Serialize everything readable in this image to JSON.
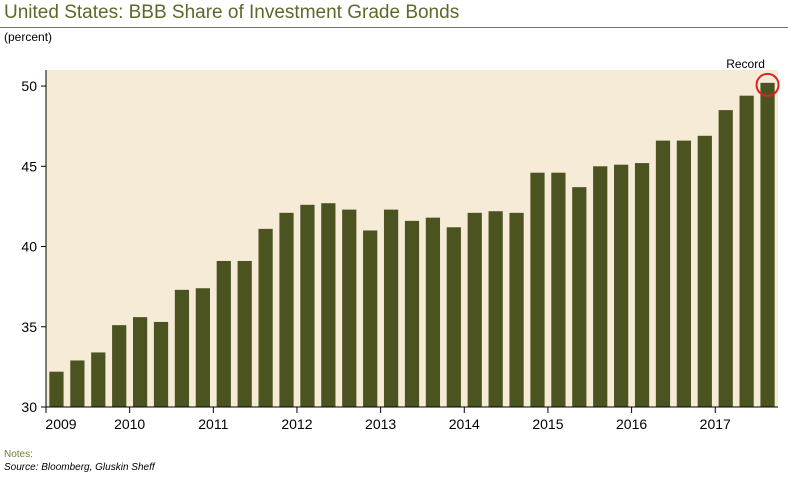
{
  "header": {
    "title": "United States: BBB Share of Investment Grade Bonds",
    "unit": "(percent)"
  },
  "footer": {
    "notes": "Notes:",
    "source": "Source: Bloomberg, Gluskin Sheff"
  },
  "chart_data": {
    "type": "bar",
    "title": "United States: BBB Share of Investment Grade Bonds",
    "ylabel": "(percent)",
    "xlabel": "",
    "ylim": [
      30,
      51
    ],
    "yticks": [
      30,
      35,
      40,
      45,
      50
    ],
    "x_tick_labels": [
      "2009",
      "2010",
      "2011",
      "2012",
      "2013",
      "2014",
      "2015",
      "2016",
      "2017"
    ],
    "values": [
      32.2,
      32.9,
      33.4,
      35.1,
      35.6,
      35.3,
      37.3,
      37.4,
      39.1,
      39.1,
      41.1,
      42.1,
      42.6,
      42.7,
      42.3,
      41.0,
      42.3,
      41.6,
      41.8,
      41.2,
      42.1,
      42.2,
      42.1,
      44.6,
      44.6,
      43.7,
      45.0,
      45.1,
      45.2,
      46.6,
      46.6,
      46.9,
      48.5,
      49.4,
      50.2
    ],
    "annotation": {
      "text": "Record",
      "target_index": 34
    },
    "colors": {
      "bar": "#4b5320",
      "plot_background": "#f5ebd6",
      "highlight_circle": "#e02020",
      "title": "#5a6a2a"
    },
    "grid": false,
    "legend": "none"
  }
}
